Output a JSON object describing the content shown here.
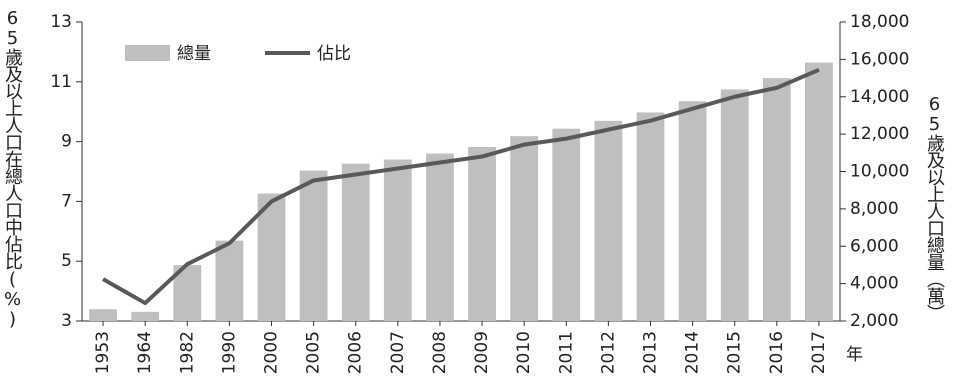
{
  "chart_data": {
    "type": "bar-line",
    "x_label": "年",
    "y_label": "65歲及以上人口在總人口中佔比(%)",
    "y2_label": "65歲及以上人口總量（萬）",
    "categories": [
      "1953",
      "1964",
      "1982",
      "1990",
      "2000",
      "2005",
      "2006",
      "2007",
      "2008",
      "2009",
      "2010",
      "2011",
      "2012",
      "2013",
      "2014",
      "2015",
      "2016",
      "2017"
    ],
    "series": [
      {
        "name": "總量",
        "type": "bar",
        "axis": "y2",
        "color": "#bfbfbf",
        "values": [
          2630,
          2490,
          4990,
          6300,
          8820,
          10050,
          10420,
          10640,
          10960,
          11310,
          11890,
          12290,
          12710,
          13160,
          13760,
          14390,
          15000,
          15830
        ]
      },
      {
        "name": "佔比",
        "type": "line",
        "axis": "y",
        "color": "#595959",
        "values": [
          4.4,
          3.6,
          4.9,
          5.6,
          7.0,
          7.7,
          7.9,
          8.1,
          8.3,
          8.5,
          8.9,
          9.1,
          9.4,
          9.7,
          10.1,
          10.5,
          10.8,
          11.4
        ]
      }
    ],
    "ylim": [
      3,
      13
    ],
    "yticks": [
      3,
      5,
      7,
      9,
      11,
      13
    ],
    "y2lim": [
      2000,
      18000
    ],
    "y2ticks": [
      {
        "value": 2000,
        "label": "2,000"
      },
      {
        "value": 4000,
        "label": "4,000"
      },
      {
        "value": 6000,
        "label": "6,000"
      },
      {
        "value": 8000,
        "label": "8,000"
      },
      {
        "value": 10000,
        "label": "10,000"
      },
      {
        "value": 12000,
        "label": "12,000"
      },
      {
        "value": 14000,
        "label": "14,000"
      },
      {
        "value": 16000,
        "label": "16,000"
      },
      {
        "value": 18000,
        "label": "18,000"
      }
    ],
    "grid": false,
    "legend": "top-left"
  }
}
